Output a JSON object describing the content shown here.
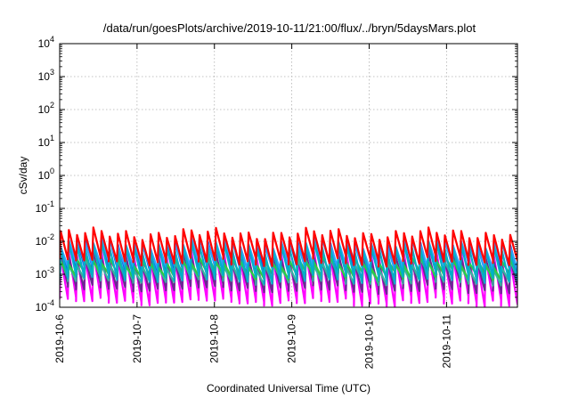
{
  "chart_data": {
    "type": "line",
    "title": "/data/run/goesPlots/archive/2019-10-11/21:00/flux/../bryn/5daysMars.plot",
    "xlabel": "Coordinated Universal Time (UTC)",
    "ylabel": "cSv/day",
    "y_scale": "log",
    "ylim": [
      0.0001,
      10000
    ],
    "y_ticks": [
      {
        "value": 0.0001,
        "base": "10",
        "exp": "-4"
      },
      {
        "value": 0.001,
        "base": "10",
        "exp": "-3"
      },
      {
        "value": 0.01,
        "base": "10",
        "exp": "-2"
      },
      {
        "value": 0.1,
        "base": "10",
        "exp": "-1"
      },
      {
        "value": 1,
        "base": "10",
        "exp": "0"
      },
      {
        "value": 10,
        "base": "10",
        "exp": "1"
      },
      {
        "value": 100,
        "base": "10",
        "exp": "2"
      },
      {
        "value": 1000,
        "base": "10",
        "exp": "3"
      },
      {
        "value": 10000,
        "base": "10",
        "exp": "4"
      }
    ],
    "xlim": [
      "2019-10-06T00:00",
      "2019-10-11T22:00"
    ],
    "x_ticks": [
      "2019-10-6",
      "2019-10-7",
      "2019-10-8",
      "2019-10-9",
      "2019-10-10",
      "2019-10-11"
    ],
    "x_tick_dates": [
      "2019-10-06T00:00",
      "2019-10-07T00:00",
      "2019-10-08T00:00",
      "2019-10-09T00:00",
      "2019-10-10T00:00",
      "2019-10-11T00:00"
    ],
    "grid": true,
    "legend": "none",
    "sawtooth_cycles": 56,
    "series": [
      {
        "color": "#ff00ff",
        "peak_value": 0.0035,
        "min_value": 0.00018
      },
      {
        "color": "#6a2a90",
        "peak_value": 0.0028,
        "min_value": 0.00045
      },
      {
        "color": "#3ab0a0",
        "peak_value": 0.002,
        "min_value": 0.0008
      },
      {
        "color": "#2ecc40",
        "peak_value": 0.0024,
        "min_value": 0.0011
      },
      {
        "color": "#1060e0",
        "peak_value": 0.0085,
        "min_value": 0.0016
      },
      {
        "color": "#30a0ff",
        "peak_value": 0.009,
        "min_value": 0.0022
      },
      {
        "color": "#00b0c8",
        "peak_value": 0.0065,
        "min_value": 0.0009
      },
      {
        "color": "#ff0000",
        "peak_value": 0.017,
        "min_value": 0.003
      }
    ]
  }
}
